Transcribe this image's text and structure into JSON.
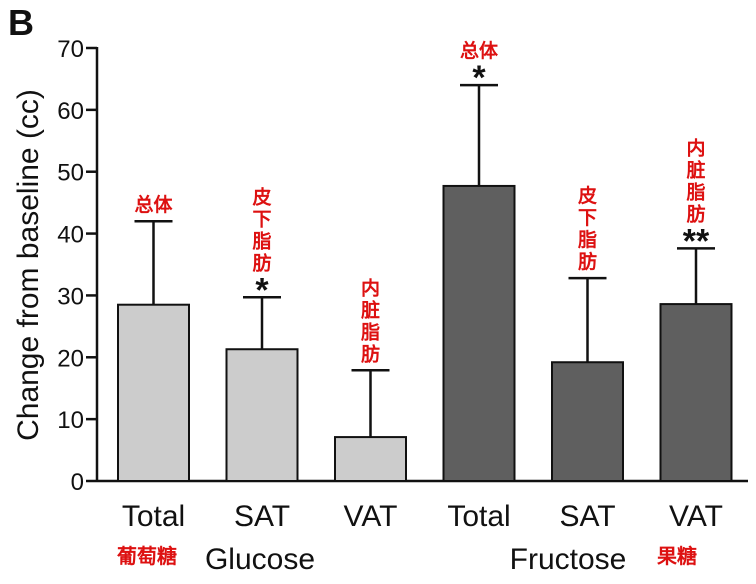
{
  "chart_data": {
    "type": "bar",
    "panel_label": "B",
    "ylabel": "Change from baseline (cc)",
    "ylim": [
      0,
      70
    ],
    "yticks": [
      0,
      10,
      20,
      30,
      40,
      50,
      60,
      70
    ],
    "categories": [
      "Total",
      "SAT",
      "VAT",
      "Total",
      "SAT",
      "VAT"
    ],
    "values": [
      28.5,
      21.3,
      7.1,
      47.7,
      19.2,
      28.6
    ],
    "error_upper": [
      42.0,
      29.7,
      17.9,
      64.0,
      32.8,
      37.6
    ],
    "significance": [
      "",
      "*",
      "",
      "*",
      "",
      "**"
    ],
    "cn_labels": [
      "总体",
      "皮下脂肪",
      "内脏脂肪",
      "总体",
      "皮下脂肪",
      "内脏脂肪"
    ],
    "groups": [
      {
        "name": "Glucose",
        "cn": "葡萄糖",
        "color": "#cccccc"
      },
      {
        "name": "Fructose",
        "cn": "果糖",
        "color": "#5f5f5f"
      }
    ],
    "bar_group_index": [
      0,
      0,
      0,
      1,
      1,
      1
    ],
    "annotation_color": "#dd1111"
  }
}
